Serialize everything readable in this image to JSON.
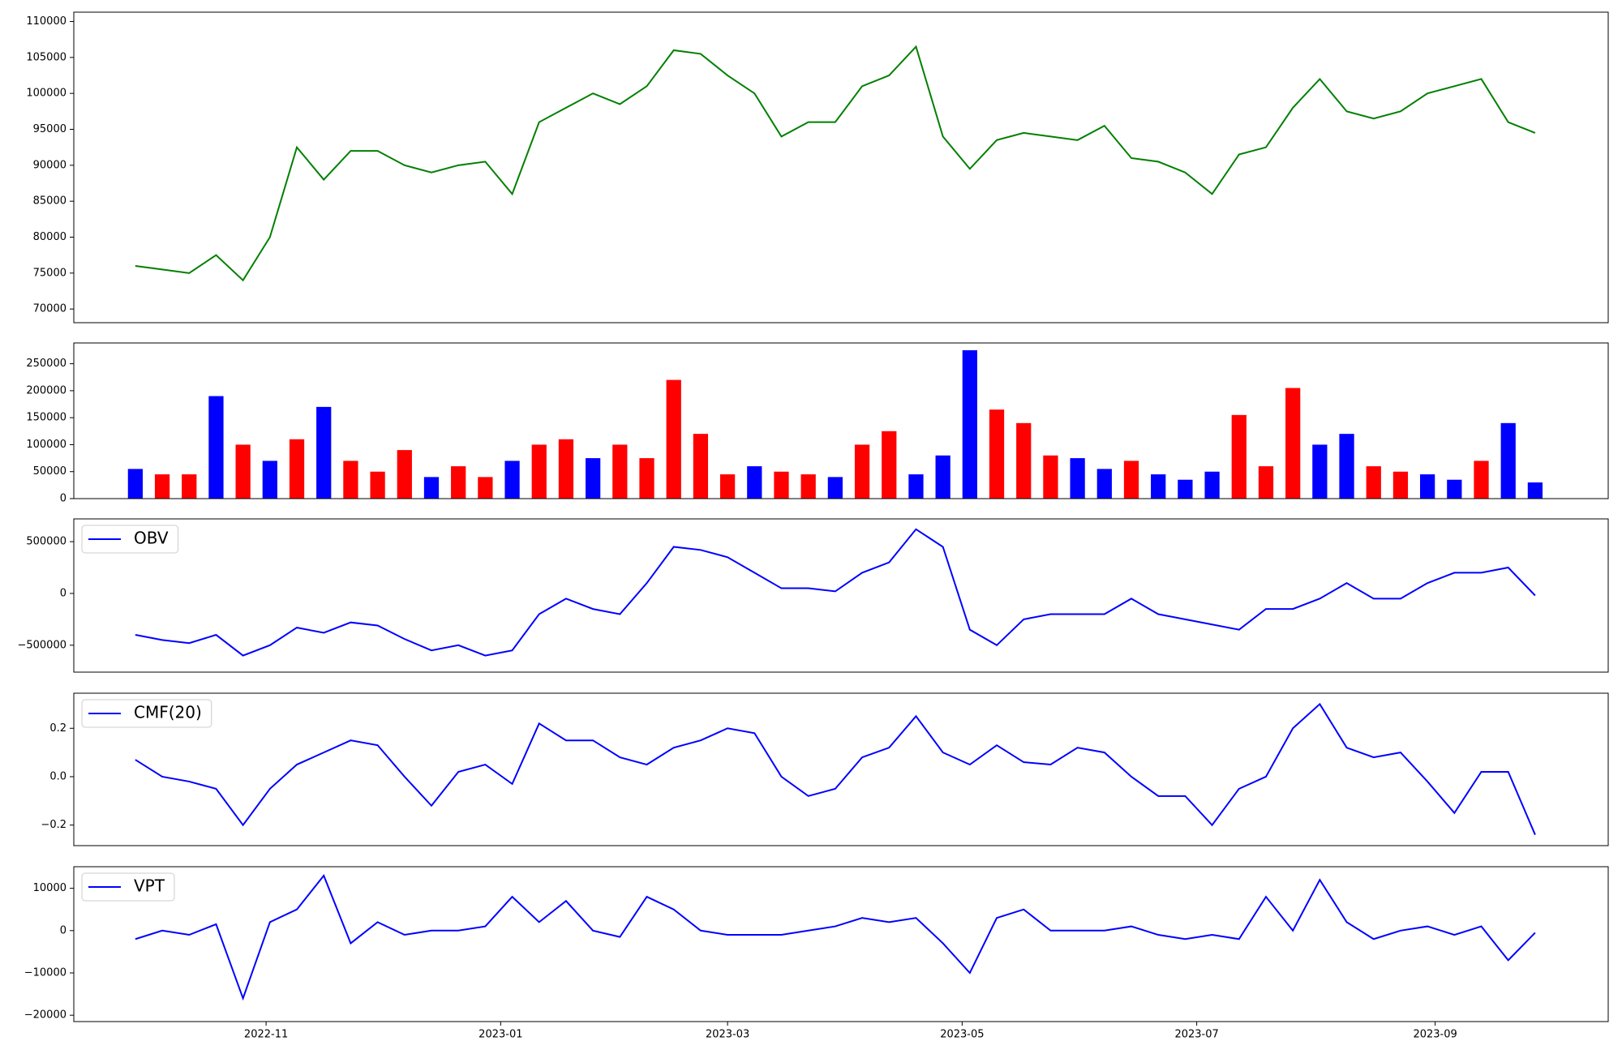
{
  "chart_data": [
    {
      "type": "line",
      "x": [
        "2022-09-28",
        "2022-10-05",
        "2022-10-12",
        "2022-10-19",
        "2022-10-26",
        "2022-11-02",
        "2022-11-09",
        "2022-11-16",
        "2022-11-23",
        "2022-11-30",
        "2022-12-07",
        "2022-12-14",
        "2022-12-21",
        "2022-12-28",
        "2023-01-04",
        "2023-01-11",
        "2023-01-18",
        "2023-01-25",
        "2023-02-01",
        "2023-02-08",
        "2023-02-15",
        "2023-02-22",
        "2023-03-01",
        "2023-03-08",
        "2023-03-15",
        "2023-03-22",
        "2023-03-29",
        "2023-04-05",
        "2023-04-12",
        "2023-04-19",
        "2023-04-26",
        "2023-05-03",
        "2023-05-10",
        "2023-05-17",
        "2023-05-24",
        "2023-05-31",
        "2023-06-07",
        "2023-06-14",
        "2023-06-21",
        "2023-06-28",
        "2023-07-05",
        "2023-07-12",
        "2023-07-19",
        "2023-07-26",
        "2023-08-02",
        "2023-08-09",
        "2023-08-16",
        "2023-08-23",
        "2023-08-30",
        "2023-09-06",
        "2023-09-13",
        "2023-09-20",
        "2023-09-27"
      ],
      "values": [
        76000,
        75500,
        75000,
        77500,
        74000,
        80000,
        92500,
        88000,
        92000,
        92000,
        90000,
        89000,
        90000,
        90500,
        86000,
        96000,
        98000,
        100000,
        98500,
        101000,
        106000,
        105500,
        102500,
        100000,
        94000,
        96000,
        96000,
        101000,
        102500,
        106500,
        94000,
        89500,
        93500,
        94500,
        94000,
        93500,
        95500,
        91000,
        90500,
        89000,
        86000,
        91500,
        92500,
        98000,
        102000,
        97500,
        96500,
        97500,
        100000,
        101000,
        102000,
        96000,
        94500
      ],
      "color": "#008000",
      "xlim": [
        "2022-09-12",
        "2023-10-16"
      ],
      "ylim": [
        68100,
        111300
      ],
      "yticks": [
        70000,
        75000,
        80000,
        85000,
        90000,
        95000,
        100000,
        105000,
        110000
      ]
    },
    {
      "type": "bar",
      "x": [
        "2022-09-28",
        "2022-10-05",
        "2022-10-12",
        "2022-10-19",
        "2022-10-26",
        "2022-11-02",
        "2022-11-09",
        "2022-11-16",
        "2022-11-23",
        "2022-11-30",
        "2022-12-07",
        "2022-12-14",
        "2022-12-21",
        "2022-12-28",
        "2023-01-04",
        "2023-01-11",
        "2023-01-18",
        "2023-01-25",
        "2023-02-01",
        "2023-02-08",
        "2023-02-15",
        "2023-02-22",
        "2023-03-01",
        "2023-03-08",
        "2023-03-15",
        "2023-03-22",
        "2023-03-29",
        "2023-04-05",
        "2023-04-12",
        "2023-04-19",
        "2023-04-26",
        "2023-05-03",
        "2023-05-10",
        "2023-05-17",
        "2023-05-24",
        "2023-05-31",
        "2023-06-07",
        "2023-06-14",
        "2023-06-21",
        "2023-06-28",
        "2023-07-05",
        "2023-07-12",
        "2023-07-19",
        "2023-07-26",
        "2023-08-02",
        "2023-08-09",
        "2023-08-16",
        "2023-08-23",
        "2023-08-30",
        "2023-09-06",
        "2023-09-13",
        "2023-09-20",
        "2023-09-27"
      ],
      "values": [
        55000,
        45000,
        45000,
        190000,
        100000,
        70000,
        110000,
        170000,
        70000,
        50000,
        90000,
        40000,
        60000,
        40000,
        70000,
        100000,
        110000,
        75000,
        100000,
        75000,
        220000,
        120000,
        45000,
        60000,
        50000,
        45000,
        40000,
        100000,
        125000,
        45000,
        80000,
        275000,
        165000,
        140000,
        80000,
        75000,
        55000,
        70000,
        45000,
        35000,
        50000,
        155000,
        60000,
        205000,
        100000,
        120000,
        60000,
        50000,
        45000,
        35000,
        70000,
        140000,
        30000
      ],
      "colors": [
        "#0000ff",
        "#ff0000",
        "#ff0000",
        "#0000ff",
        "#ff0000",
        "#0000ff",
        "#ff0000",
        "#0000ff",
        "#ff0000",
        "#ff0000",
        "#ff0000",
        "#0000ff",
        "#ff0000",
        "#ff0000",
        "#0000ff",
        "#ff0000",
        "#ff0000",
        "#0000ff",
        "#ff0000",
        "#ff0000",
        "#ff0000",
        "#ff0000",
        "#ff0000",
        "#0000ff",
        "#ff0000",
        "#ff0000",
        "#0000ff",
        "#ff0000",
        "#ff0000",
        "#0000ff",
        "#0000ff",
        "#0000ff",
        "#ff0000",
        "#ff0000",
        "#ff0000",
        "#0000ff",
        "#0000ff",
        "#ff0000",
        "#0000ff",
        "#0000ff",
        "#0000ff",
        "#ff0000",
        "#ff0000",
        "#ff0000",
        "#0000ff",
        "#0000ff",
        "#ff0000",
        "#ff0000",
        "#0000ff",
        "#0000ff",
        "#ff0000",
        "#0000ff",
        "#0000ff"
      ],
      "xlim": [
        "2022-09-12",
        "2023-10-16"
      ],
      "ylim": [
        0,
        288500
      ],
      "yticks": [
        0,
        50000,
        100000,
        150000,
        200000,
        250000
      ]
    },
    {
      "type": "line",
      "x": [
        "2022-09-28",
        "2022-10-05",
        "2022-10-12",
        "2022-10-19",
        "2022-10-26",
        "2022-11-02",
        "2022-11-09",
        "2022-11-16",
        "2022-11-23",
        "2022-11-30",
        "2022-12-07",
        "2022-12-14",
        "2022-12-21",
        "2022-12-28",
        "2023-01-04",
        "2023-01-11",
        "2023-01-18",
        "2023-01-25",
        "2023-02-01",
        "2023-02-08",
        "2023-02-15",
        "2023-02-22",
        "2023-03-01",
        "2023-03-08",
        "2023-03-15",
        "2023-03-22",
        "2023-03-29",
        "2023-04-05",
        "2023-04-12",
        "2023-04-19",
        "2023-04-26",
        "2023-05-03",
        "2023-05-10",
        "2023-05-17",
        "2023-05-24",
        "2023-05-31",
        "2023-06-07",
        "2023-06-14",
        "2023-06-21",
        "2023-06-28",
        "2023-07-05",
        "2023-07-12",
        "2023-07-19",
        "2023-07-26",
        "2023-08-02",
        "2023-08-09",
        "2023-08-16",
        "2023-08-23",
        "2023-08-30",
        "2023-09-06",
        "2023-09-13",
        "2023-09-20",
        "2023-09-27"
      ],
      "series": [
        {
          "name": "OBV",
          "color": "#0000ff",
          "values": [
            -400000,
            -450000,
            -480000,
            -400000,
            -600000,
            -500000,
            -330000,
            -380000,
            -280000,
            -310000,
            -440000,
            -550000,
            -500000,
            -600000,
            -550000,
            -200000,
            -50000,
            -150000,
            -200000,
            100000,
            450000,
            420000,
            350000,
            200000,
            50000,
            50000,
            20000,
            200000,
            300000,
            620000,
            450000,
            -350000,
            -500000,
            -250000,
            -200000,
            -200000,
            -200000,
            -50000,
            -200000,
            -250000,
            -300000,
            -350000,
            -150000,
            -150000,
            -50000,
            100000,
            -50000,
            -50000,
            100000,
            200000,
            200000,
            250000,
            -20000
          ]
        }
      ],
      "legend": "upper left",
      "xlim": [
        "2022-09-12",
        "2023-10-16"
      ],
      "ylim": [
        -760000,
        720000
      ],
      "yticks": [
        {
          "value": -500000,
          "label": "−500000"
        },
        0,
        500000
      ]
    },
    {
      "type": "line",
      "x": [
        "2022-09-28",
        "2022-10-05",
        "2022-10-12",
        "2022-10-19",
        "2022-10-26",
        "2022-11-02",
        "2022-11-09",
        "2022-11-16",
        "2022-11-23",
        "2022-11-30",
        "2022-12-07",
        "2022-12-14",
        "2022-12-21",
        "2022-12-28",
        "2023-01-04",
        "2023-01-11",
        "2023-01-18",
        "2023-01-25",
        "2023-02-01",
        "2023-02-08",
        "2023-02-15",
        "2023-02-22",
        "2023-03-01",
        "2023-03-08",
        "2023-03-15",
        "2023-03-22",
        "2023-03-29",
        "2023-04-05",
        "2023-04-12",
        "2023-04-19",
        "2023-04-26",
        "2023-05-03",
        "2023-05-10",
        "2023-05-17",
        "2023-05-24",
        "2023-05-31",
        "2023-06-07",
        "2023-06-14",
        "2023-06-21",
        "2023-06-28",
        "2023-07-05",
        "2023-07-12",
        "2023-07-19",
        "2023-07-26",
        "2023-08-02",
        "2023-08-09",
        "2023-08-16",
        "2023-08-23",
        "2023-08-30",
        "2023-09-06",
        "2023-09-13",
        "2023-09-20",
        "2023-09-27"
      ],
      "series": [
        {
          "name": "CMF(20)",
          "color": "#0000ff",
          "values": [
            0.07,
            0.0,
            -0.02,
            -0.05,
            -0.2,
            -0.05,
            0.05,
            0.1,
            0.15,
            0.13,
            0.0,
            -0.12,
            0.02,
            0.05,
            -0.03,
            0.22,
            0.15,
            0.15,
            0.08,
            0.05,
            0.12,
            0.15,
            0.2,
            0.18,
            0.0,
            -0.08,
            -0.05,
            0.08,
            0.12,
            0.25,
            0.1,
            0.05,
            0.13,
            0.06,
            0.05,
            0.12,
            0.1,
            0.0,
            -0.08,
            -0.08,
            -0.2,
            -0.05,
            0.0,
            0.2,
            0.3,
            0.12,
            0.08,
            0.1,
            -0.02,
            -0.15,
            0.02,
            0.02,
            -0.24
          ]
        }
      ],
      "legend": "upper left",
      "xlim": [
        "2022-09-12",
        "2023-10-16"
      ],
      "ylim": [
        -0.285,
        0.345
      ],
      "yticks": [
        {
          "value": -0.2,
          "label": "−0.2"
        },
        {
          "value": 0,
          "label": "0.0"
        },
        0.2
      ]
    },
    {
      "type": "line",
      "x": [
        "2022-09-28",
        "2022-10-05",
        "2022-10-12",
        "2022-10-19",
        "2022-10-26",
        "2022-11-02",
        "2022-11-09",
        "2022-11-16",
        "2022-11-23",
        "2022-11-30",
        "2022-12-07",
        "2022-12-14",
        "2022-12-21",
        "2022-12-28",
        "2023-01-04",
        "2023-01-11",
        "2023-01-18",
        "2023-01-25",
        "2023-02-01",
        "2023-02-08",
        "2023-02-15",
        "2023-02-22",
        "2023-03-01",
        "2023-03-08",
        "2023-03-15",
        "2023-03-22",
        "2023-03-29",
        "2023-04-05",
        "2023-04-12",
        "2023-04-19",
        "2023-04-26",
        "2023-05-03",
        "2023-05-10",
        "2023-05-17",
        "2023-05-24",
        "2023-05-31",
        "2023-06-07",
        "2023-06-14",
        "2023-06-21",
        "2023-06-28",
        "2023-07-05",
        "2023-07-12",
        "2023-07-19",
        "2023-07-26",
        "2023-08-02",
        "2023-08-09",
        "2023-08-16",
        "2023-08-23",
        "2023-08-30",
        "2023-09-06",
        "2023-09-13",
        "2023-09-20",
        "2023-09-27"
      ],
      "series": [
        {
          "name": "VPT",
          "color": "#0000ff",
          "values": [
            -2000,
            0,
            -1000,
            1500,
            -16000,
            2000,
            5000,
            13000,
            -3000,
            2000,
            -1000,
            0,
            0,
            1000,
            8000,
            2000,
            7000,
            0,
            -1500,
            8000,
            5000,
            0,
            -1000,
            -1000,
            -1000,
            0,
            1000,
            3000,
            2000,
            3000,
            -3000,
            -10000,
            3000,
            5000,
            0,
            0,
            0,
            1000,
            -1000,
            -2000,
            -1000,
            -2000,
            8000,
            0,
            12000,
            2000,
            -2000,
            0,
            1000,
            -1000,
            1000,
            -7000,
            -500
          ]
        }
      ],
      "legend": "upper left",
      "xlim": [
        "2022-09-12",
        "2023-10-16"
      ],
      "ylim": [
        -21500,
        15100
      ],
      "yticks": [
        {
          "value": -20000,
          "label": "−20000"
        },
        {
          "value": -10000,
          "label": "−10000"
        },
        0,
        10000
      ],
      "xticks": [
        "2022-11",
        "2023-01",
        "2023-03",
        "2023-05",
        "2023-07",
        "2023-09"
      ]
    }
  ]
}
